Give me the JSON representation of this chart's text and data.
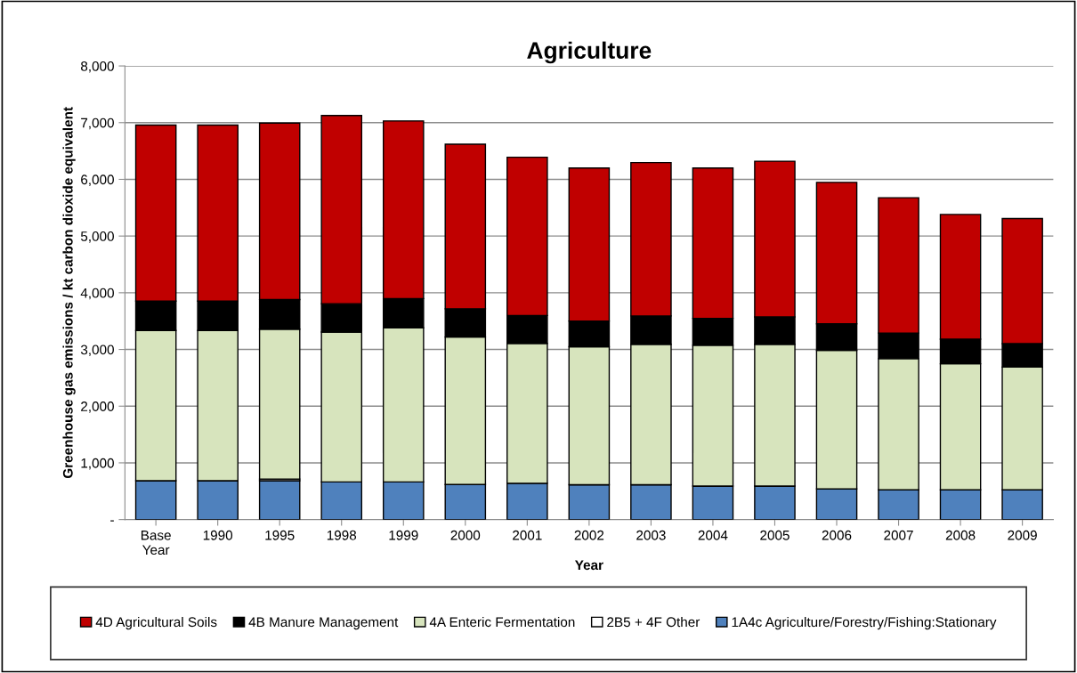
{
  "chart_data": {
    "type": "bar",
    "stacked": true,
    "title": "Agriculture",
    "xlabel": "Year",
    "ylabel": "Greenhouse gas emissions / kt carbon dioxide equivalent",
    "categories": [
      "Base\nYear",
      "1990",
      "1995",
      "1998",
      "1999",
      "2000",
      "2001",
      "2002",
      "2003",
      "2004",
      "2005",
      "2006",
      "2007",
      "2008",
      "2009"
    ],
    "series": [
      {
        "name": "1A4c Agriculture/Forestry/Fishing:Stationary",
        "color": "#4f81bd",
        "values": [
          685,
          685,
          685,
          663,
          663,
          618,
          640,
          614,
          614,
          590,
          590,
          542,
          524,
          524,
          524
        ]
      },
      {
        "name": "2B5 + 4F Other",
        "color": "#ffffff",
        "values": [
          0,
          0,
          30,
          0,
          0,
          0,
          0,
          0,
          0,
          0,
          0,
          0,
          0,
          0,
          0
        ]
      },
      {
        "name": "4A Enteric Fermentation",
        "color": "#d7e4bd",
        "values": [
          2650,
          2650,
          2644,
          2645,
          2718,
          2600,
          2466,
          2435,
          2477,
          2483,
          2501,
          2441,
          2314,
          2224,
          2164
        ]
      },
      {
        "name": "4B Manure Management",
        "color": "#000000",
        "values": [
          517,
          517,
          522,
          499,
          516,
          500,
          494,
          452,
          500,
          476,
          482,
          470,
          452,
          434,
          415
        ]
      },
      {
        "name": "4D Agricultural Soils",
        "color": "#c00000",
        "values": [
          3105,
          3105,
          3111,
          3319,
          3133,
          2902,
          2790,
          2699,
          2705,
          2651,
          2747,
          2494,
          2386,
          2199,
          2205
        ]
      }
    ],
    "ylim": [
      0,
      8000
    ],
    "yticks": [
      {
        "value": 0,
        "label": "-"
      },
      {
        "value": 1000,
        "label": "1,000"
      },
      {
        "value": 2000,
        "label": "2,000"
      },
      {
        "value": 3000,
        "label": "3,000"
      },
      {
        "value": 4000,
        "label": "4,000"
      },
      {
        "value": 5000,
        "label": "5,000"
      },
      {
        "value": 6000,
        "label": "6,000"
      },
      {
        "value": 7000,
        "label": "7,000"
      },
      {
        "value": 8000,
        "label": "8,000"
      }
    ],
    "grid": "y",
    "legend": "bottom"
  }
}
